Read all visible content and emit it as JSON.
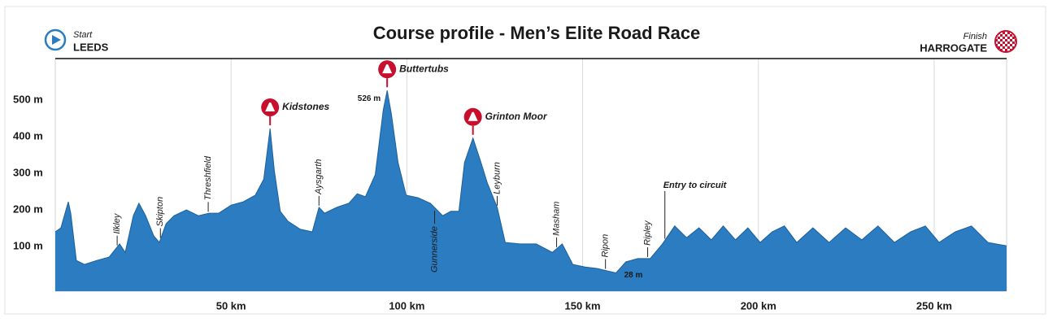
{
  "chart_data": {
    "type": "area",
    "title": "Course profile - Men’s Elite Road Race",
    "start_label": "Start",
    "start_name": "LEEDS",
    "finish_label": "Finish",
    "finish_name": "HARROGATE",
    "color": "#2b7cc0",
    "x": [
      0,
      1.6,
      3.7,
      4.4,
      6,
      8.3,
      11.8,
      15.3,
      18.3,
      19.9,
      22.2,
      23.8,
      25.7,
      28,
      29.6,
      31.5,
      33.8,
      37.3,
      40.7,
      43.8,
      46.5,
      50,
      53.5,
      56.9,
      59.3,
      61.1,
      62.3,
      64,
      66.2,
      69.7,
      73.1,
      75,
      76.6,
      80.1,
      83.5,
      85.9,
      88.2,
      91,
      93.3,
      94.4,
      95.6,
      97.5,
      99.8,
      103.2,
      106.7,
      110.2,
      112.5,
      114.8,
      116.4,
      118.8,
      121.1,
      122.9,
      125.7,
      128,
      132.2,
      136.8,
      141.4,
      144.2,
      147.2,
      150.7,
      154.2,
      157.2,
      159.5,
      162.3,
      165.7,
      169.2,
      172.7,
      176.2,
      179.6,
      183.1,
      186.6,
      190,
      193.5,
      197,
      200.5,
      203.9,
      207.4,
      210.9,
      215.5,
      220.1,
      224.8,
      229.4,
      234,
      238.7,
      243.3,
      247.5,
      251.4,
      256,
      260.6,
      265.3,
      270.6
    ],
    "values": [
      140,
      151,
      222,
      191,
      62,
      51,
      62,
      71,
      107,
      84,
      184,
      218,
      184,
      129,
      111,
      162,
      184,
      200,
      184,
      191,
      191,
      213,
      222,
      240,
      284,
      422,
      307,
      196,
      169,
      147,
      140,
      207,
      191,
      207,
      218,
      244,
      236,
      296,
      473,
      526,
      462,
      329,
      240,
      233,
      218,
      184,
      196,
      196,
      329,
      396,
      329,
      273,
      207,
      111,
      107,
      107,
      84,
      107,
      51,
      44,
      40,
      33,
      28,
      58,
      67,
      67,
      107,
      156,
      124,
      151,
      118,
      156,
      118,
      151,
      111,
      140,
      156,
      111,
      151,
      111,
      151,
      118,
      156,
      111,
      140,
      156,
      111,
      140,
      156,
      111,
      102
    ],
    "xlim": [
      0,
      270.6
    ],
    "ylim": [
      -22,
      613
    ],
    "xticks": [
      {
        "value": 50,
        "label": "50 km"
      },
      {
        "value": 100,
        "label": "100 km"
      },
      {
        "value": 150,
        "label": "150 km"
      },
      {
        "value": 200,
        "label": "200 km"
      },
      {
        "value": 250,
        "label": "250 km"
      }
    ],
    "yticks": [
      {
        "value": 100,
        "label": "100 m"
      },
      {
        "value": 200,
        "label": "200 m"
      },
      {
        "value": 300,
        "label": "300 m"
      },
      {
        "value": 400,
        "label": "400 m"
      },
      {
        "value": 500,
        "label": "500 m"
      }
    ],
    "grid": true,
    "places": [
      {
        "name": "Ilkley",
        "x": 17.6
      },
      {
        "name": "Skipton",
        "x": 29.9
      },
      {
        "name": "Threshfield",
        "x": 43.5
      },
      {
        "name": "Aysgarth",
        "x": 75
      },
      {
        "name": "Gunnerside",
        "x": 107.9
      },
      {
        "name": "Leyburn",
        "x": 125.7
      },
      {
        "name": "Masham",
        "x": 142.6
      },
      {
        "name": "Ripon",
        "x": 156.5
      },
      {
        "name": "Ripley",
        "x": 168.5
      },
      {
        "name": "Entry to circuit",
        "x": 173.4
      }
    ],
    "climbs": [
      {
        "name": "Kidstones",
        "x": 61.1
      },
      {
        "name": "Buttertubs",
        "x": 94.4
      },
      {
        "name": "Grinton Moor",
        "x": 118.8
      }
    ],
    "annotations": [
      {
        "text": "526 m",
        "x": 94.4,
        "y": 526
      },
      {
        "text": "28 m",
        "x": 159.5,
        "y": 28
      }
    ]
  }
}
